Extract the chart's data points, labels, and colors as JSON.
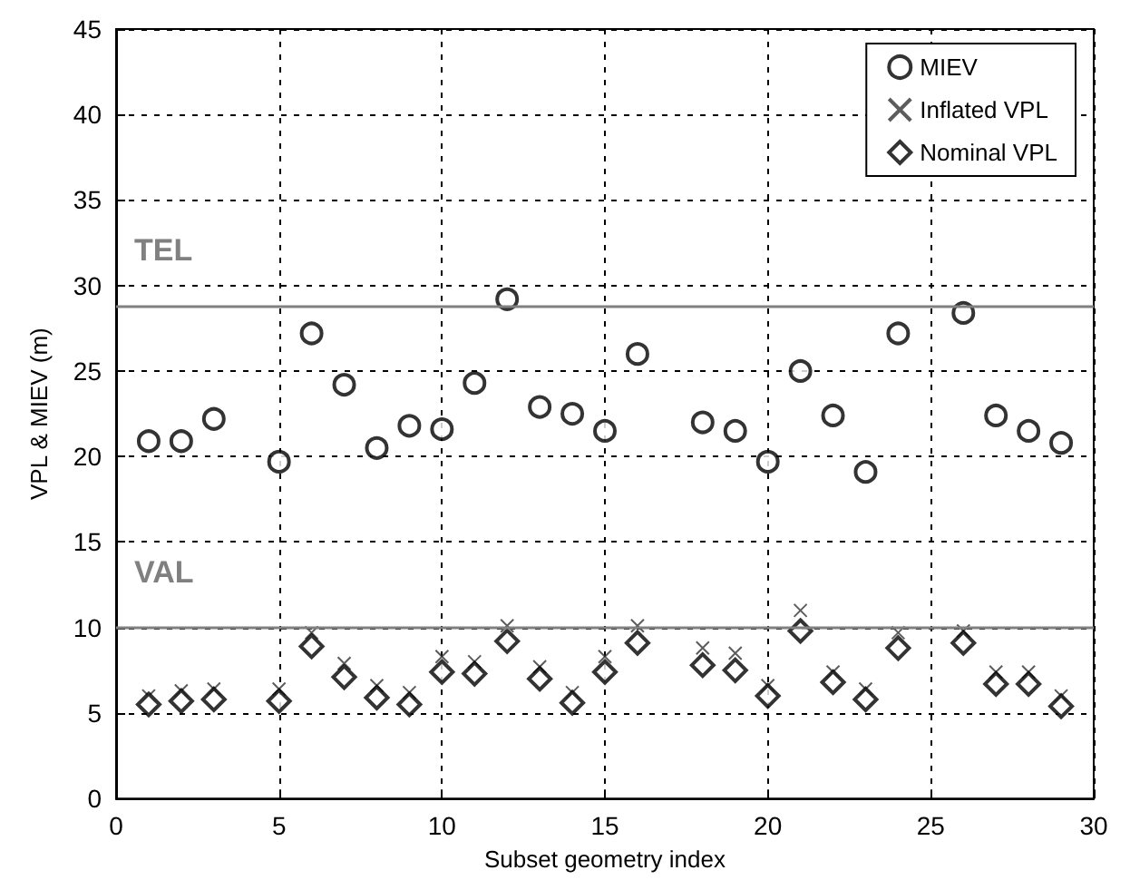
{
  "chart_data": {
    "type": "scatter",
    "xlabel": "Subset geometry index",
    "ylabel": "VPL & MIEV (m)",
    "x": [
      1,
      2,
      3,
      5,
      6,
      7,
      8,
      9,
      10,
      11,
      12,
      13,
      14,
      15,
      16,
      18,
      19,
      20,
      21,
      22,
      23,
      24,
      26,
      27,
      28,
      29
    ],
    "series": [
      {
        "name": "MIEV",
        "color": "#000000",
        "marker": "circle",
        "values": [
          20.9,
          20.9,
          22.2,
          19.7,
          27.2,
          24.2,
          20.5,
          21.8,
          21.6,
          24.3,
          29.2,
          22.9,
          22.5,
          21.5,
          26.0,
          22.0,
          21.5,
          19.7,
          25.0,
          22.4,
          19.1,
          27.2,
          28.4,
          22.4,
          21.5,
          20.8
        ]
      },
      {
        "name": "Inflated VPL",
        "color": "#333333",
        "marker": "cross",
        "values": [
          6.0,
          6.3,
          6.4,
          6.4,
          9.7,
          7.9,
          6.6,
          6.2,
          8.3,
          8.0,
          10.1,
          7.7,
          6.2,
          8.3,
          10.1,
          8.8,
          8.5,
          6.6,
          11.0,
          7.4,
          6.4,
          9.7,
          9.8,
          7.4,
          7.4,
          6.0
        ]
      },
      {
        "name": "Nominal VPL",
        "color": "#000000",
        "marker": "diamond",
        "values": [
          5.5,
          5.7,
          5.8,
          5.7,
          8.9,
          7.1,
          5.9,
          5.5,
          7.4,
          7.3,
          9.2,
          7.0,
          5.6,
          7.4,
          9.1,
          7.8,
          7.5,
          6.0,
          9.8,
          6.8,
          5.8,
          8.8,
          9.1,
          6.7,
          6.7,
          5.4
        ]
      }
    ],
    "xlim": [
      0,
      30
    ],
    "xticks": [
      0,
      5,
      10,
      15,
      20,
      25,
      30
    ],
    "ylim": [
      0,
      45
    ],
    "yticks": [
      0,
      5,
      10,
      15,
      20,
      25,
      30,
      35,
      40,
      45
    ],
    "ref_lines": [
      {
        "axis": "y",
        "value": 28.8,
        "label": "TEL",
        "color": "#808080"
      },
      {
        "axis": "y",
        "value": 10,
        "label": "VAL",
        "color": "#808080"
      }
    ],
    "grid": true,
    "legend": "top right"
  }
}
